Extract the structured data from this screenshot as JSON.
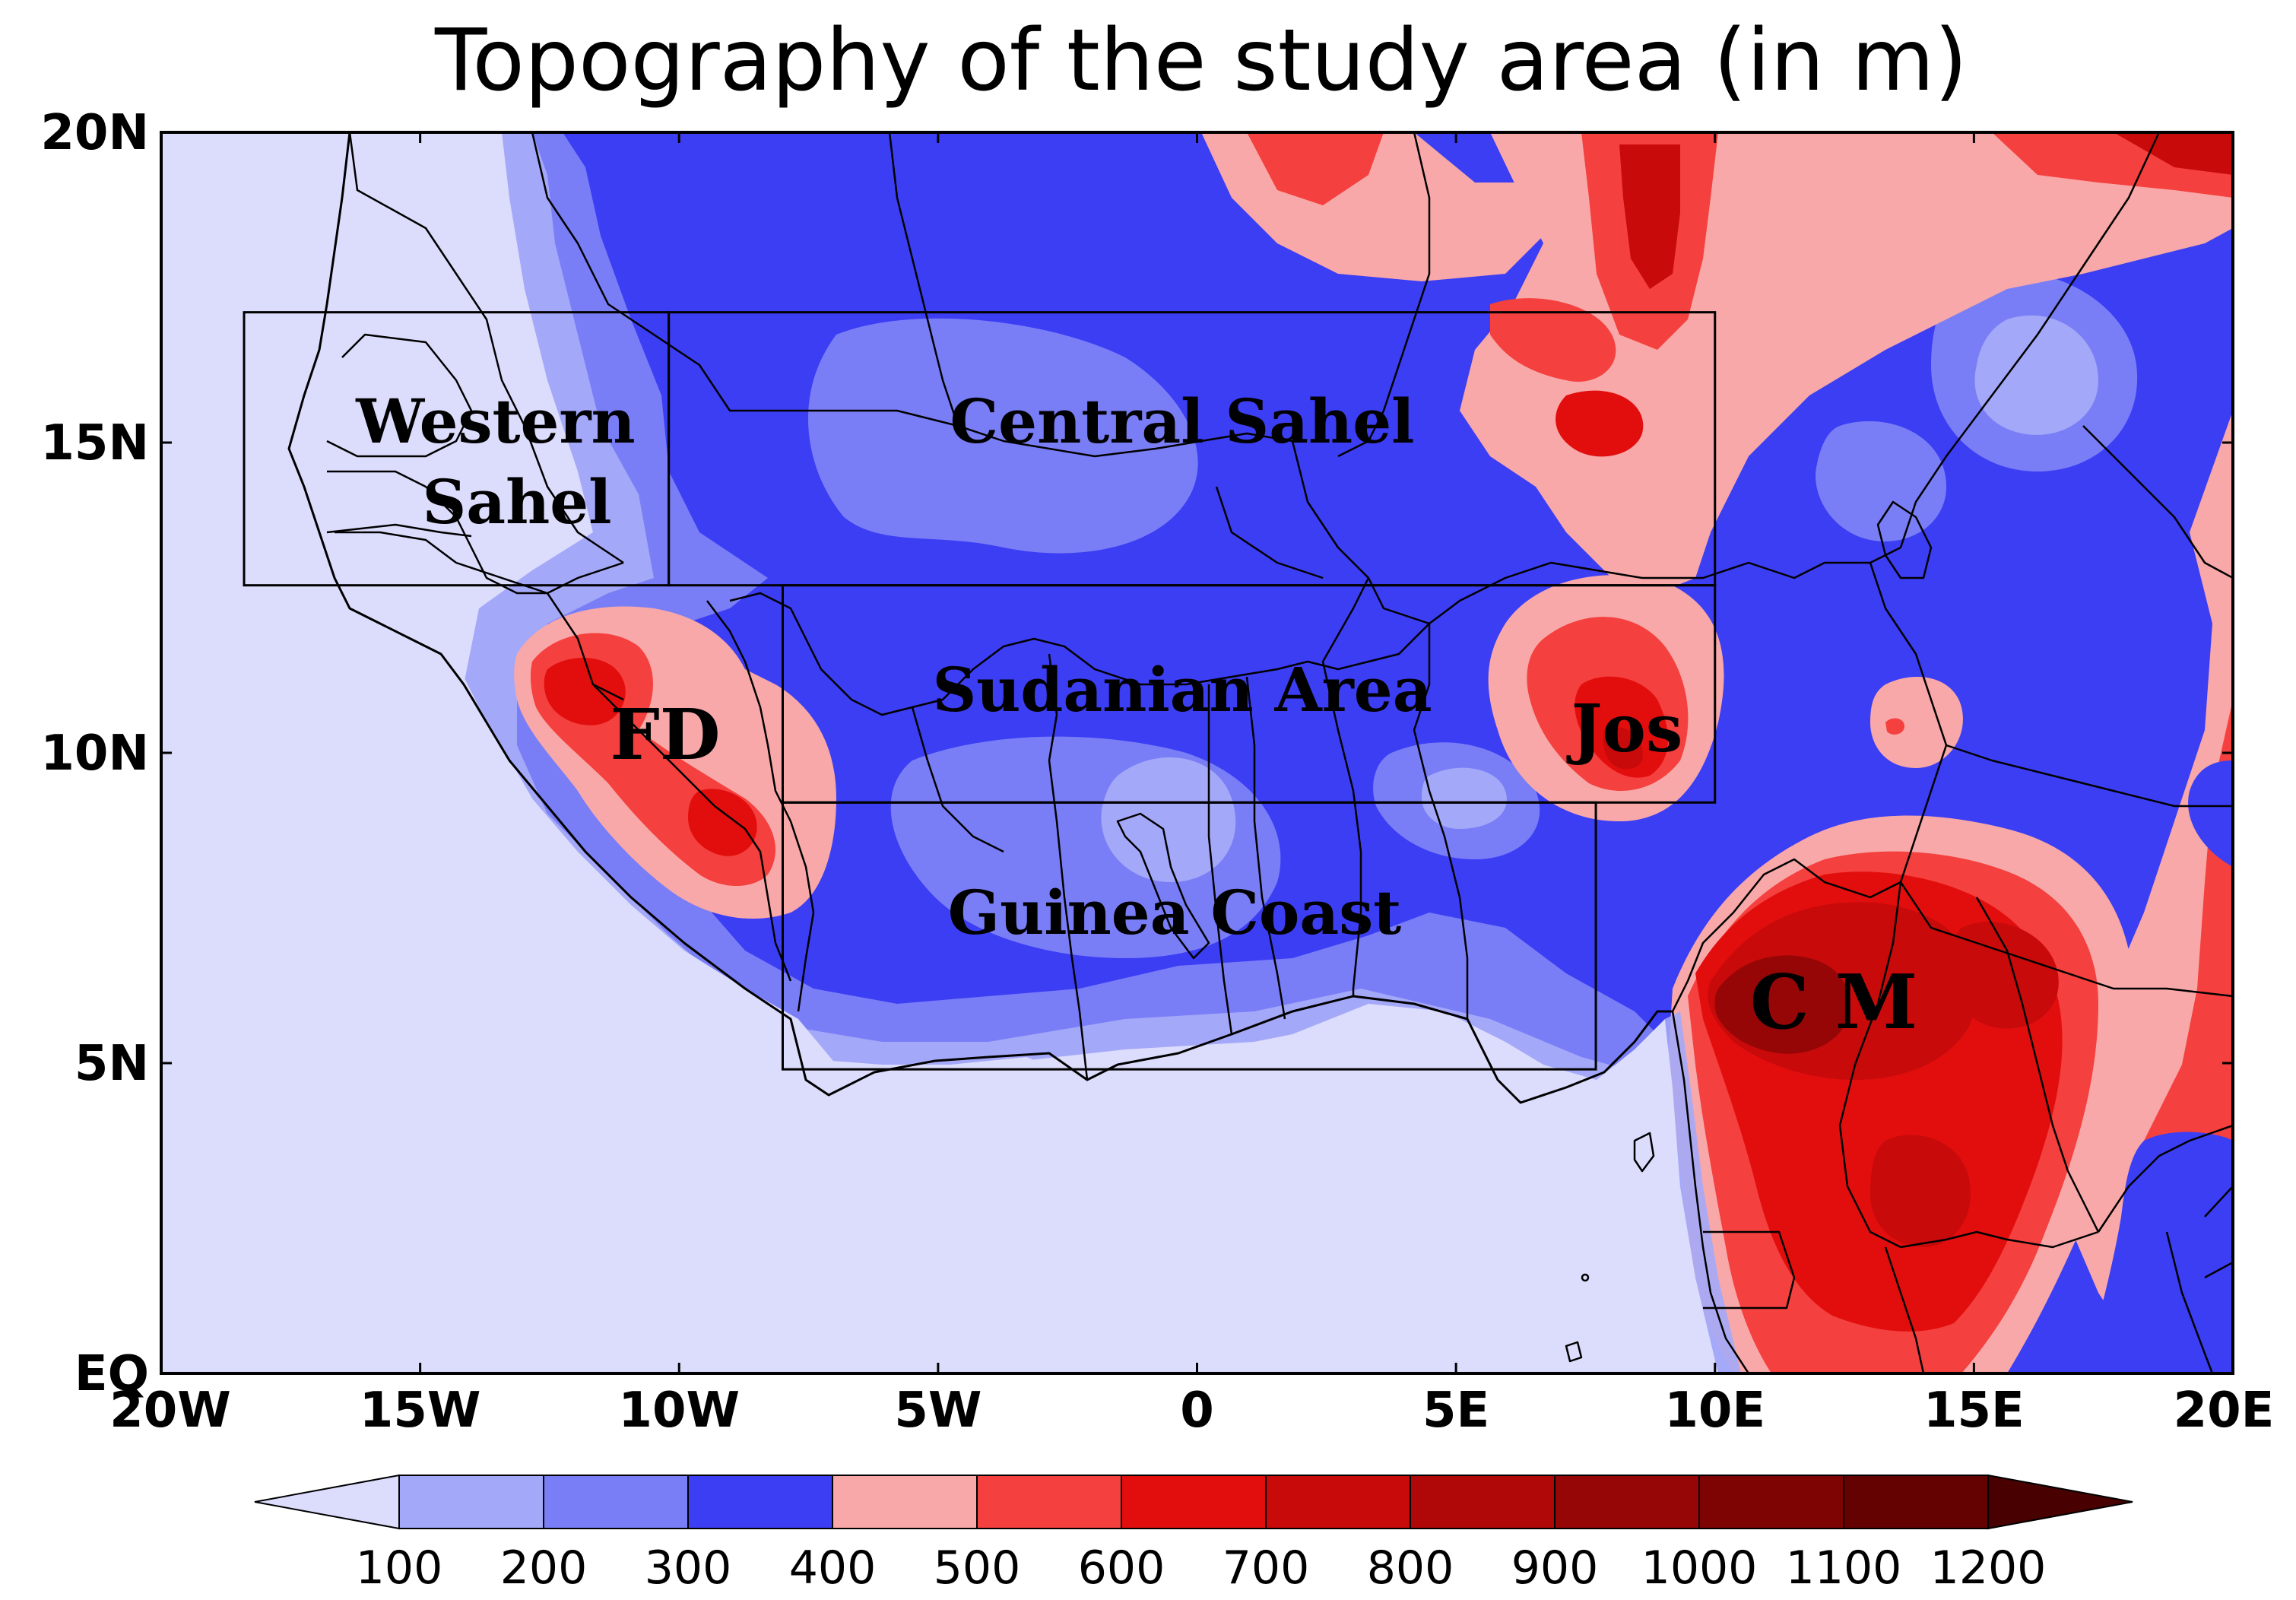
{
  "title": "Topography of the study area (in m)",
  "map": {
    "lon_range": [
      -20,
      20
    ],
    "lat_range": [
      0,
      20
    ],
    "x_ticks": [
      {
        "lon": -20,
        "label": "20W"
      },
      {
        "lon": -15,
        "label": "15W"
      },
      {
        "lon": -10,
        "label": "10W"
      },
      {
        "lon": -5,
        "label": "5W"
      },
      {
        "lon": 0,
        "label": "0"
      },
      {
        "lon": 5,
        "label": "5E"
      },
      {
        "lon": 10,
        "label": "10E"
      },
      {
        "lon": 15,
        "label": "15E"
      },
      {
        "lon": 20,
        "label": "20E"
      }
    ],
    "y_ticks": [
      {
        "lat": 20,
        "label": "20N"
      },
      {
        "lat": 15,
        "label": "15N"
      },
      {
        "lat": 10,
        "label": "10N"
      },
      {
        "lat": 5,
        "label": "5N"
      },
      {
        "lat": 0,
        "label": "EQ"
      }
    ],
    "regions": [
      {
        "name": "Western Sahel",
        "lines": [
          "Western",
          "Sahel"
        ],
        "box": {
          "lon": [
            -18.4,
            -10.2
          ],
          "lat": [
            12.7,
            17.1
          ]
        }
      },
      {
        "name": "Central Sahel",
        "lines": [
          "Central Sahel"
        ],
        "box": {
          "lon": [
            -10.2,
            10.0
          ],
          "lat": [
            12.7,
            17.1
          ]
        }
      },
      {
        "name": "Sudanian Area",
        "lines": [
          "Sudanian Area"
        ],
        "box": {
          "lon": [
            -8.0,
            10.0
          ],
          "lat": [
            9.2,
            12.7
          ]
        }
      },
      {
        "name": "Guinea Coast",
        "lines": [
          "Guinea Coast"
        ],
        "box": {
          "lon": [
            -8.0,
            7.7
          ],
          "lat": [
            4.9,
            9.2
          ]
        }
      }
    ],
    "highlands": [
      {
        "name": "FD",
        "label": "FD",
        "lon": -10.5,
        "lat": 10.2
      },
      {
        "name": "Jos",
        "label": "Jos",
        "lon": 8.9,
        "lat": 10.3
      },
      {
        "name": "CM",
        "label": "C M",
        "lon": 12.4,
        "lat": 5.9
      }
    ]
  },
  "colorbar": {
    "labels": [
      "100",
      "200",
      "300",
      "400",
      "500",
      "600",
      "700",
      "800",
      "900",
      "1000",
      "1100",
      "1200"
    ],
    "colors": [
      "#dcdcfc",
      "#a4a8f8",
      "#7a7ef6",
      "#3c3ef4",
      "#f8a8a8",
      "#f4403e",
      "#e20e0e",
      "#c80a0a",
      "#b00808",
      "#960606",
      "#7e0404",
      "#640202",
      "#480000"
    ]
  },
  "palette": {
    "ocean": "#dcdcfc",
    "c200": "#a4a8f8",
    "c300": "#7a7ef6",
    "c400": "#3c3ef4",
    "c500": "#f8a8a8",
    "c600": "#f4403e",
    "c700": "#e20e0e",
    "c800": "#c80a0a",
    "c900": "#b00808",
    "c1000": "#960606",
    "lines": "#000000"
  }
}
